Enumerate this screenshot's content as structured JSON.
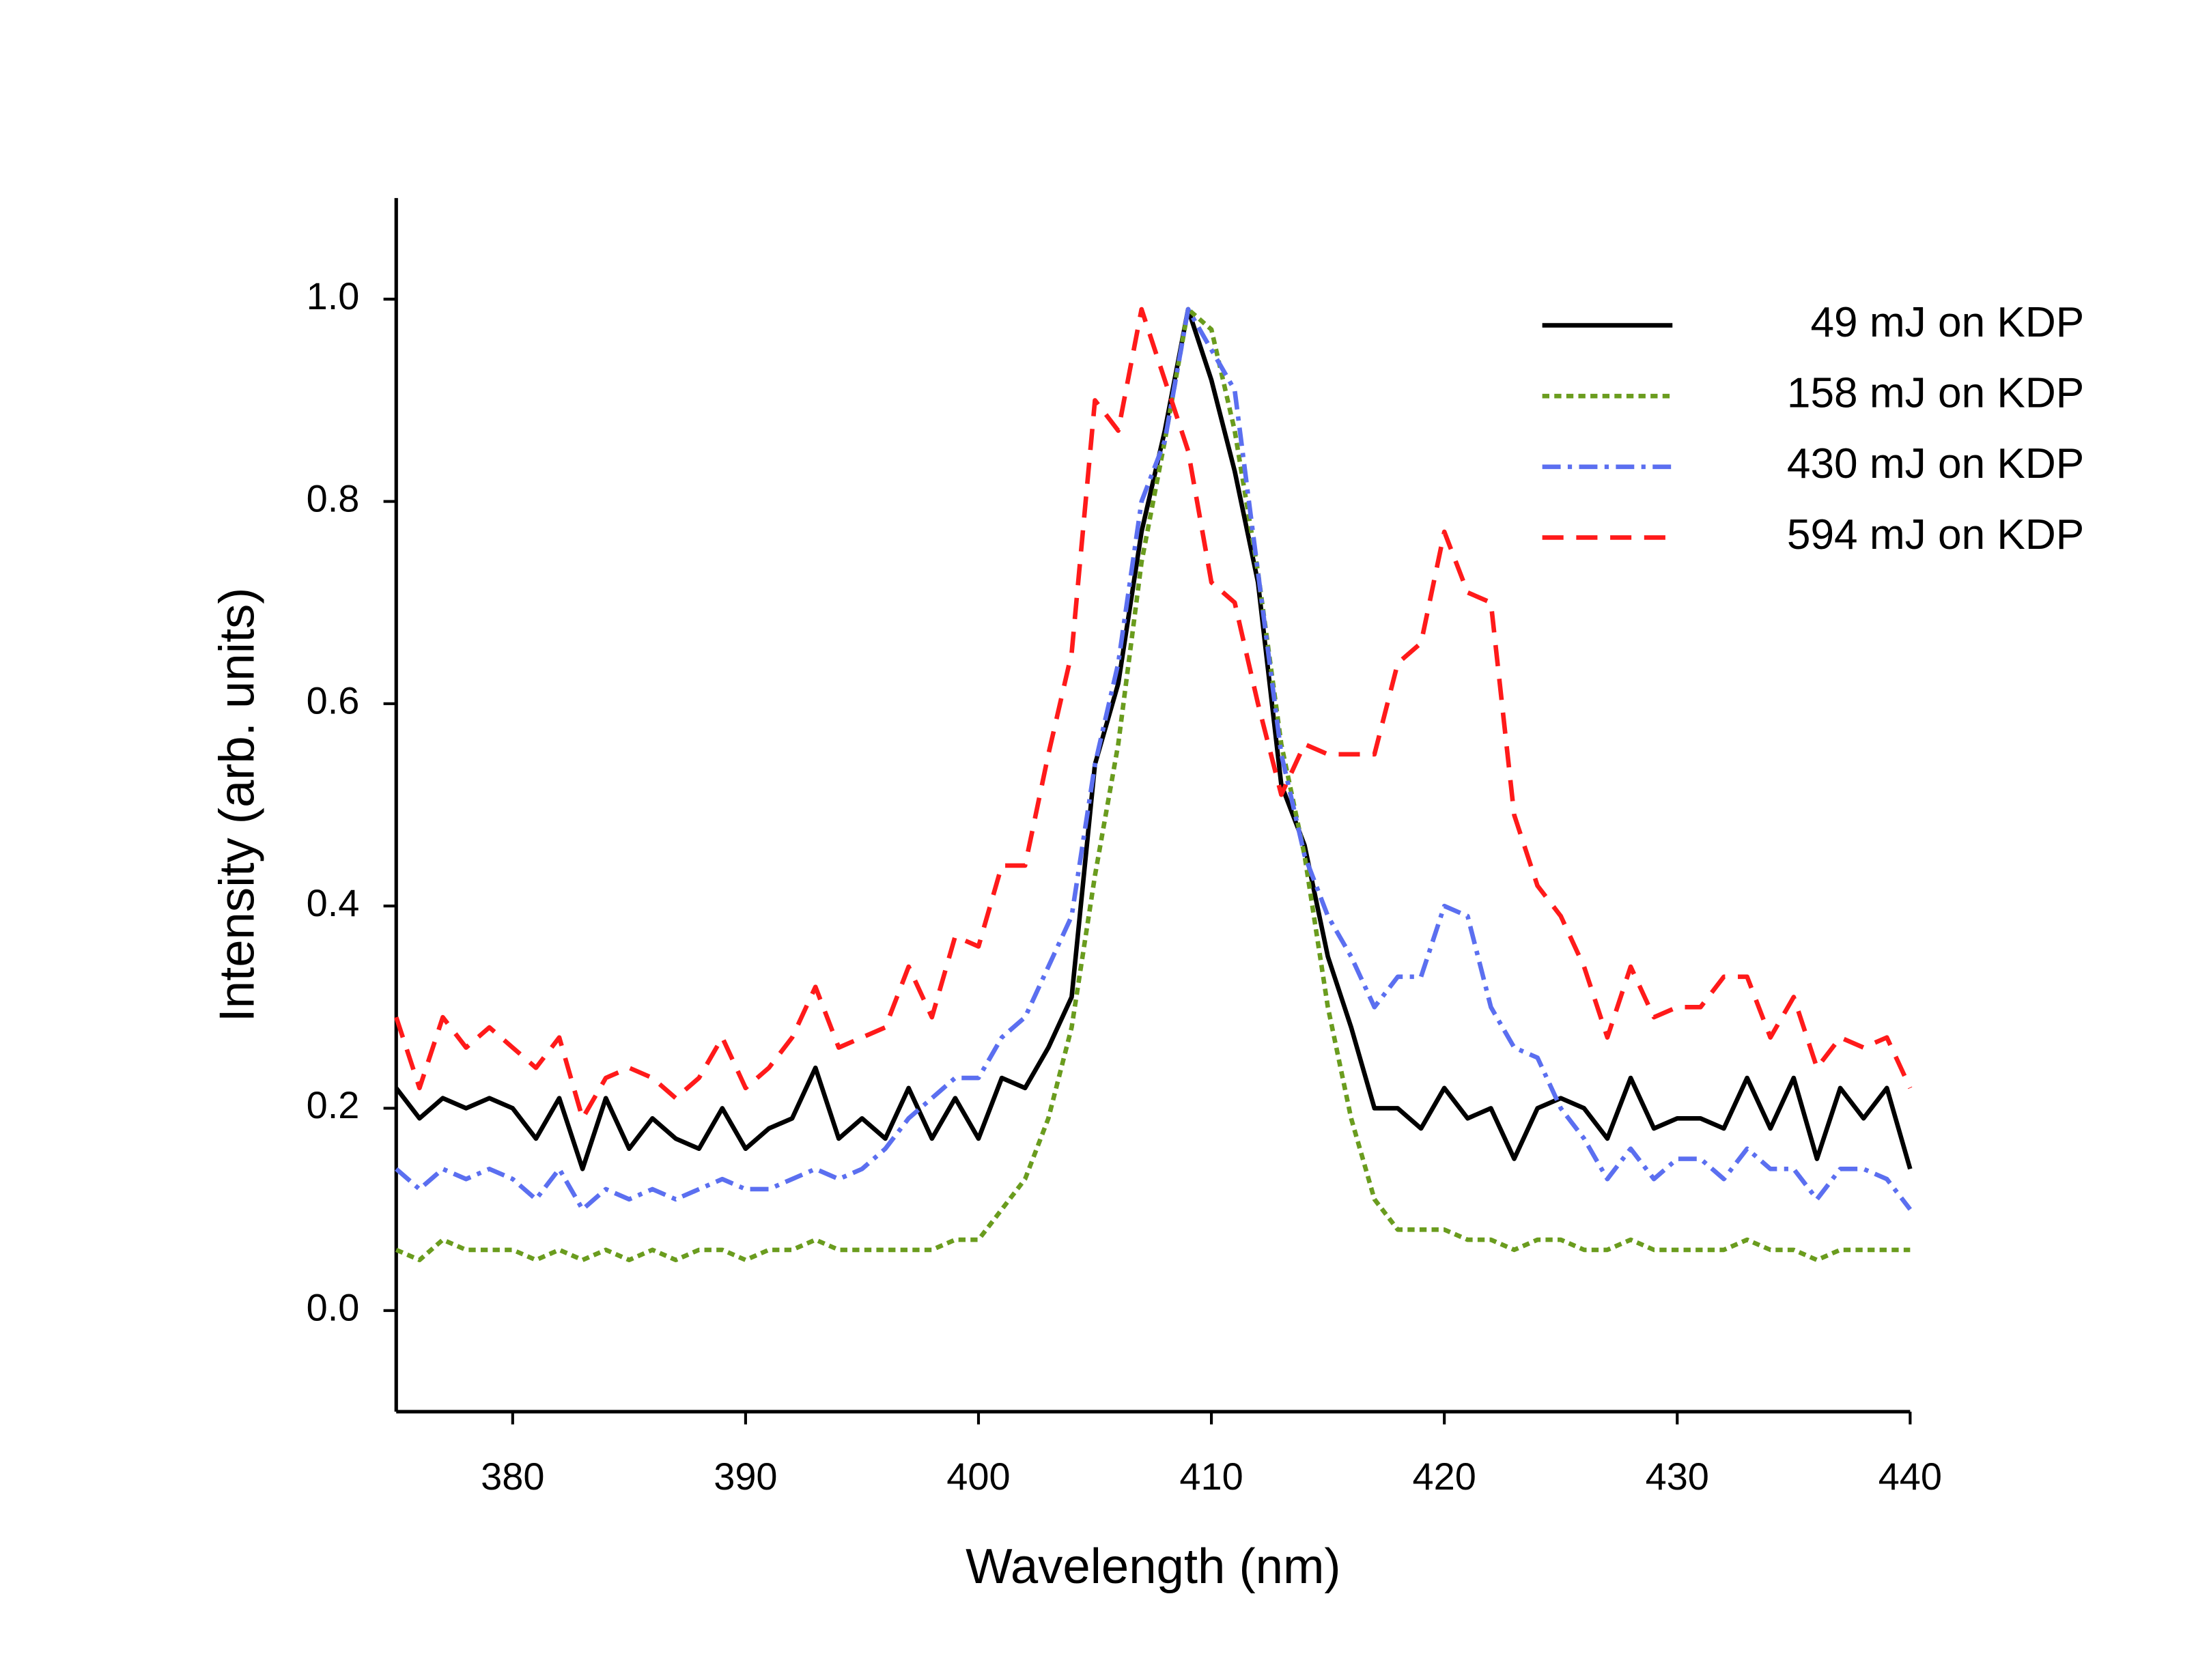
{
  "chart_data": {
    "type": "line",
    "xlabel": "Wavelength (nm)",
    "ylabel": "Intensity (arb. units)",
    "xlim": [
      375,
      440
    ],
    "ylim": [
      -0.1,
      1.1
    ],
    "xticks": [
      380,
      390,
      400,
      410,
      420,
      430,
      440
    ],
    "yticks": [
      {
        "value": 0,
        "label": "0.0"
      },
      0.2,
      0.4,
      0.6,
      0.8,
      {
        "value": 1,
        "label": "1.0"
      }
    ],
    "legend": "upper right",
    "x": [
      375,
      376,
      377,
      378,
      379,
      380,
      381,
      382,
      383,
      384,
      385,
      386,
      387,
      388,
      389,
      390,
      391,
      392,
      393,
      394,
      395,
      396,
      397,
      398,
      399,
      400,
      401,
      402,
      403,
      404,
      405,
      406,
      407,
      408,
      409,
      410,
      411,
      412,
      413,
      414,
      415,
      416,
      417,
      418,
      419,
      420,
      421,
      422,
      423,
      424,
      425,
      426,
      427,
      428,
      429,
      430,
      431,
      432,
      433,
      434,
      435,
      436,
      437,
      438,
      439,
      440
    ],
    "series": [
      {
        "name": "49 mJ on KDP",
        "color": "#000000",
        "dash": "solid",
        "values": [
          0.22,
          0.19,
          0.21,
          0.2,
          0.21,
          0.2,
          0.17,
          0.21,
          0.14,
          0.21,
          0.16,
          0.19,
          0.17,
          0.16,
          0.2,
          0.16,
          0.18,
          0.19,
          0.24,
          0.17,
          0.19,
          0.17,
          0.22,
          0.17,
          0.21,
          0.17,
          0.23,
          0.22,
          0.26,
          0.31,
          0.54,
          0.62,
          0.77,
          0.87,
          0.99,
          0.92,
          0.83,
          0.72,
          0.52,
          0.46,
          0.35,
          0.28,
          0.2,
          0.2,
          0.18,
          0.22,
          0.19,
          0.2,
          0.15,
          0.2,
          0.21,
          0.2,
          0.17,
          0.23,
          0.18,
          0.19,
          0.19,
          0.18,
          0.23,
          0.18,
          0.23,
          0.15,
          0.22,
          0.19,
          0.22,
          0.14
        ]
      },
      {
        "name": "158 mJ on KDP",
        "color": "#6a9c1e",
        "dash": "dotted",
        "values": [
          0.06,
          0.05,
          0.07,
          0.06,
          0.06,
          0.06,
          0.05,
          0.06,
          0.05,
          0.06,
          0.05,
          0.06,
          0.05,
          0.06,
          0.06,
          0.05,
          0.06,
          0.06,
          0.07,
          0.06,
          0.06,
          0.06,
          0.06,
          0.06,
          0.07,
          0.07,
          0.1,
          0.13,
          0.19,
          0.28,
          0.43,
          0.56,
          0.74,
          0.86,
          0.99,
          0.97,
          0.87,
          0.73,
          0.56,
          0.45,
          0.3,
          0.19,
          0.11,
          0.08,
          0.08,
          0.08,
          0.07,
          0.07,
          0.06,
          0.07,
          0.07,
          0.06,
          0.06,
          0.07,
          0.06,
          0.06,
          0.06,
          0.06,
          0.07,
          0.06,
          0.06,
          0.05,
          0.06,
          0.06,
          0.06,
          0.06
        ]
      },
      {
        "name": "430 mJ on KDP",
        "color": "#5b6ff0",
        "dash": "dashdot",
        "values": [
          0.14,
          0.12,
          0.14,
          0.13,
          0.14,
          0.13,
          0.11,
          0.14,
          0.1,
          0.12,
          0.11,
          0.12,
          0.11,
          0.12,
          0.13,
          0.12,
          0.12,
          0.13,
          0.14,
          0.13,
          0.14,
          0.16,
          0.19,
          0.21,
          0.23,
          0.23,
          0.27,
          0.29,
          0.34,
          0.39,
          0.54,
          0.64,
          0.8,
          0.86,
          0.99,
          0.95,
          0.91,
          0.73,
          0.55,
          0.45,
          0.39,
          0.35,
          0.3,
          0.33,
          0.33,
          0.4,
          0.39,
          0.3,
          0.26,
          0.25,
          0.2,
          0.17,
          0.13,
          0.16,
          0.13,
          0.15,
          0.15,
          0.13,
          0.16,
          0.14,
          0.14,
          0.11,
          0.14,
          0.14,
          0.13,
          0.1
        ]
      },
      {
        "name": "594 mJ on KDP",
        "color": "#ff1a1a",
        "dash": "dashed",
        "values": [
          0.29,
          0.22,
          0.29,
          0.26,
          0.28,
          0.26,
          0.24,
          0.27,
          0.19,
          0.23,
          0.24,
          0.23,
          0.21,
          0.23,
          0.27,
          0.22,
          0.24,
          0.27,
          0.32,
          0.26,
          0.27,
          0.28,
          0.34,
          0.29,
          0.37,
          0.36,
          0.44,
          0.44,
          0.55,
          0.65,
          0.9,
          0.87,
          0.99,
          0.92,
          0.85,
          0.72,
          0.7,
          0.6,
          0.51,
          0.56,
          0.55,
          0.55,
          0.55,
          0.64,
          0.66,
          0.77,
          0.71,
          0.7,
          0.49,
          0.42,
          0.39,
          0.34,
          0.27,
          0.34,
          0.29,
          0.3,
          0.3,
          0.33,
          0.33,
          0.27,
          0.31,
          0.24,
          0.27,
          0.26,
          0.27,
          0.22
        ]
      }
    ]
  }
}
